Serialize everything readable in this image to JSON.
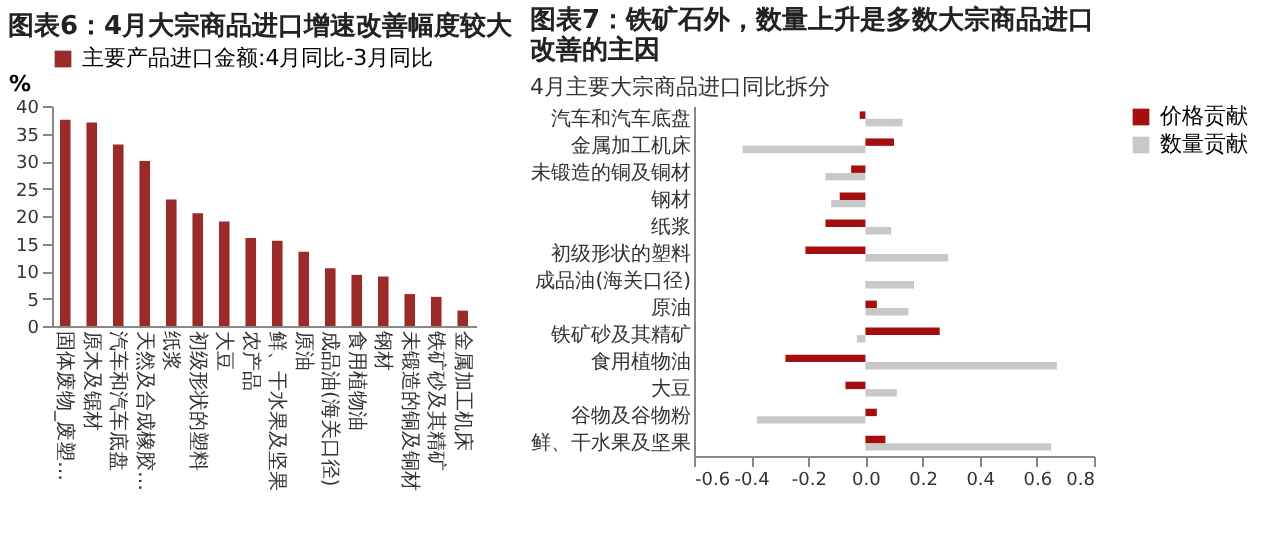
{
  "chart_data": [
    {
      "type": "bar",
      "title": "图表6：4月大宗商品进口增速改善幅度较大",
      "ylabel": "%",
      "categories": [
        "固体废物_废塑…",
        "原木及锯材",
        "汽车和汽车底盘",
        "天然及合成橡胶…",
        "纸浆",
        "初级形状的塑料",
        "大豆",
        "农产品",
        "鲜、干水果及坚果",
        "原油",
        "成品油(海关口径)",
        "食用植物油",
        "钢材",
        "未锻造的铜及铜材",
        "铁矿砂及其精矿",
        "金属加工机床"
      ],
      "series": [
        {
          "name": "主要产品进口金额:4月同比-3月同比",
          "color": "#9b2a2a",
          "values": [
            37.5,
            37,
            33,
            30,
            23,
            20.5,
            19,
            16,
            15.5,
            13.5,
            10.5,
            9.3,
            9,
            5.8,
            5.3,
            2.8
          ]
        }
      ],
      "ylim": [
        0,
        40
      ],
      "yticks": [
        0,
        5,
        10,
        15,
        20,
        25,
        30,
        35,
        40
      ],
      "grid": false,
      "legend": "top"
    },
    {
      "type": "bar",
      "orientation": "horizontal",
      "title": "图表7：铁矿石外，数量上升是多数大宗商品进口改善的主因",
      "subtitle": "4月主要大宗商品进口同比拆分",
      "categories": [
        "汽车和汽车底盘",
        "金属加工机床",
        "未锻造的铜及铜材",
        "钢材",
        "纸浆",
        "初级形状的塑料",
        "成品油(海关口径)",
        "原油",
        "铁矿砂及其精矿",
        "食用植物油",
        "大豆",
        "谷物及谷物粉",
        "鲜、干水果及坚果"
      ],
      "series": [
        {
          "name": "价格贡献",
          "color": "#a50e0e",
          "values": [
            -0.02,
            0.1,
            -0.05,
            -0.09,
            -0.14,
            -0.21,
            0,
            0.04,
            0.26,
            -0.28,
            -0.07,
            0.04,
            0.07
          ]
        },
        {
          "name": "数量贡献",
          "color": "#c8c8c8",
          "values": [
            0.13,
            -0.43,
            -0.14,
            -0.12,
            0.09,
            0.29,
            0.17,
            0.15,
            -0.03,
            0.67,
            0.11,
            -0.38,
            0.65
          ]
        }
      ],
      "xlim": [
        -0.6,
        0.8
      ],
      "xticks": [
        -0.6,
        -0.4,
        -0.2,
        {
          "value": 0,
          "label": "0.0"
        },
        0.2,
        0.4,
        0.6,
        0.8
      ],
      "grid": false,
      "legend": "top right"
    }
  ]
}
